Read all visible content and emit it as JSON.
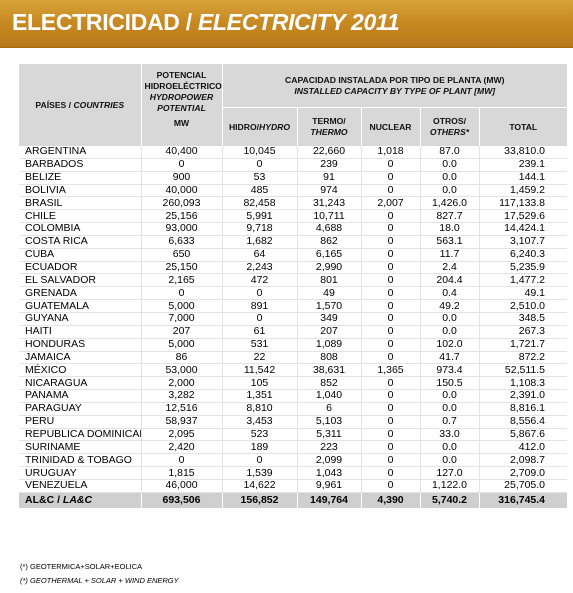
{
  "title": {
    "main": "ELECTRICIDAD / ",
    "italic": "ELECTRICITY 2011"
  },
  "header": {
    "country_es": "PAÍSES / ",
    "country_en": "COUNTRIES",
    "potential_es": "POTENCIAL HIDROELÉCTRICO",
    "potential_en": "HYDROPOWER POTENTIAL",
    "potential_unit": "MW",
    "capacity_es": "CAPACIDAD INSTALADA POR TIPO DE PLANTA (MW)",
    "capacity_en": "INSTALLED CAPACITY BY TYPE OF PLANT [MW]",
    "hydro_es": "HIDRO/",
    "hydro_en": "HYDRO",
    "thermo_es": "TERMO/",
    "thermo_en": "THERMO",
    "nuclear": "NUCLEAR",
    "others_es": "OTROS/",
    "others_en": "OTHERS*",
    "total": "TOTAL"
  },
  "rows": [
    [
      "ARGENTINA",
      "40,400",
      "10,045",
      "22,660",
      "1,018",
      "87.0",
      "33,810.0"
    ],
    [
      "BARBADOS",
      "0",
      "0",
      "239",
      "0",
      "0.0",
      "239.1"
    ],
    [
      "BELIZE",
      "900",
      "53",
      "91",
      "0",
      "0.0",
      "144.1"
    ],
    [
      "BOLIVIA",
      "40,000",
      "485",
      "974",
      "0",
      "0.0",
      "1,459.2"
    ],
    [
      "BRASIL",
      "260,093",
      "82,458",
      "31,243",
      "2,007",
      "1,426.0",
      "117,133.8"
    ],
    [
      "CHILE",
      "25,156",
      "5,991",
      "10,711",
      "0",
      "827.7",
      "17,529.6"
    ],
    [
      "COLOMBIA",
      "93,000",
      "9,718",
      "4,688",
      "0",
      "18.0",
      "14,424.1"
    ],
    [
      "COSTA RICA",
      "6,633",
      "1,682",
      "862",
      "0",
      "563.1",
      "3,107.7"
    ],
    [
      "CUBA",
      "650",
      "64",
      "6,165",
      "0",
      "11.7",
      "6,240.3"
    ],
    [
      "ECUADOR",
      "25,150",
      "2,243",
      "2,990",
      "0",
      "2.4",
      "5,235.9"
    ],
    [
      "EL SALVADOR",
      "2,165",
      "472",
      "801",
      "0",
      "204.4",
      "1,477.2"
    ],
    [
      "GRENADA",
      "0",
      "0",
      "49",
      "0",
      "0.4",
      "49.1"
    ],
    [
      "GUATEMALA",
      "5,000",
      "891",
      "1,570",
      "0",
      "49.2",
      "2,510.0"
    ],
    [
      "GUYANA",
      "7,000",
      "0",
      "349",
      "0",
      "0.0",
      "348.5"
    ],
    [
      "HAITI",
      "207",
      "61",
      "207",
      "0",
      "0.0",
      "267.3"
    ],
    [
      "HONDURAS",
      "5,000",
      "531",
      "1,089",
      "0",
      "102.0",
      "1,721.7"
    ],
    [
      "JAMAICA",
      "86",
      "22",
      "808",
      "0",
      "41.7",
      "872.2"
    ],
    [
      "MÉXICO",
      "53,000",
      "11,542",
      "38,631",
      "1,365",
      "973.4",
      "52,511.5"
    ],
    [
      "NICARAGUA",
      "2,000",
      "105",
      "852",
      "0",
      "150.5",
      "1,108.3"
    ],
    [
      "PANAMÁ",
      "3,282",
      "1,351",
      "1,040",
      "0",
      "0.0",
      "2,391.0"
    ],
    [
      "PARAGUAY",
      "12,516",
      "8,810",
      "6",
      "0",
      "0.0",
      "8,816.1"
    ],
    [
      "PERÚ",
      "58,937",
      "3,453",
      "5,103",
      "0",
      "0.7",
      "8,556.4"
    ],
    [
      "REPÚBLICA DOMINICANA",
      "2,095",
      "523",
      "5,311",
      "0",
      "33.0",
      "5,867.6"
    ],
    [
      "SURINAME",
      "2,420",
      "189",
      "223",
      "0",
      "0.0",
      "412.0"
    ],
    [
      "TRINIDAD & TOBAGO",
      "0",
      "0",
      "2,099",
      "0",
      "0.0",
      "2,098.7"
    ],
    [
      "URUGUAY",
      "1,815",
      "1,539",
      "1,043",
      "0",
      "127.0",
      "2,709.0"
    ],
    [
      "VENEZUELA",
      "46,000",
      "14,622",
      "9,961",
      "0",
      "1,122.0",
      "25,705.0"
    ]
  ],
  "total_row": {
    "label": "AL&C / ",
    "label_en": "LA&C",
    "values": [
      "693,506",
      "156,852",
      "149,764",
      "4,390",
      "5,740.2",
      "316,745.4"
    ]
  },
  "footnotes": {
    "es": "(*) GEOTERMICA+SOLAR+EOLICA",
    "en": "(*) GEOTHERMAL + SOLAR + WIND ENERGY"
  }
}
